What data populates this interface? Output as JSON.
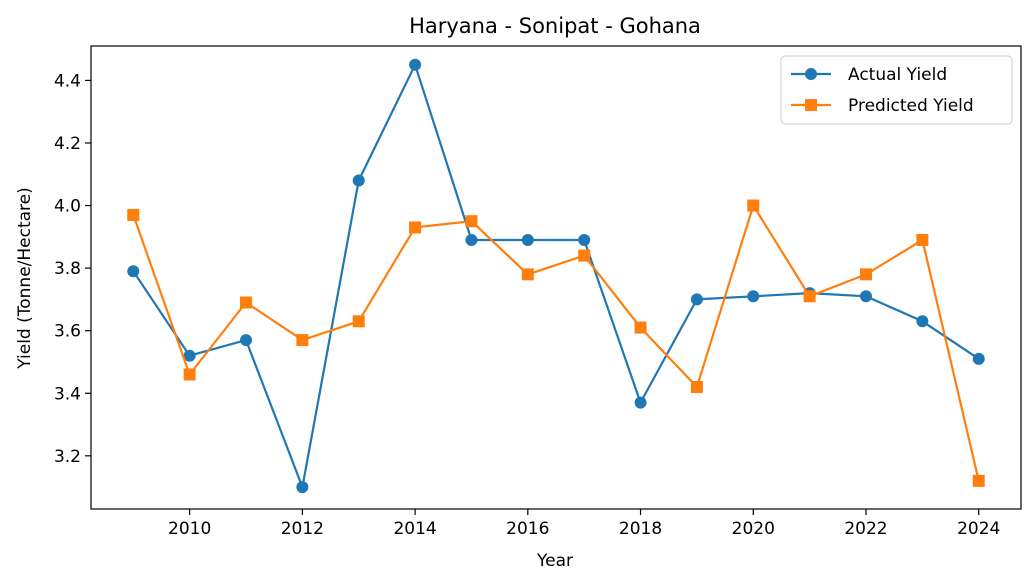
{
  "chart_data": {
    "type": "line",
    "title": "Haryana - Sonipat - Gohana",
    "xlabel": "Year",
    "ylabel": "Yield (Tonne/Hectare)",
    "x": [
      2009,
      2010,
      2011,
      2012,
      2013,
      2014,
      2015,
      2016,
      2017,
      2018,
      2019,
      2020,
      2021,
      2022,
      2023,
      2024
    ],
    "xlim": [
      2008.25,
      2024.75
    ],
    "ylim": [
      3.03,
      4.51
    ],
    "xticks": [
      "2010",
      "2012",
      "2014",
      "2016",
      "2018",
      "2020",
      "2022",
      "2024"
    ],
    "yticks": [
      "3.2",
      "3.4",
      "3.6",
      "3.8",
      "4.0",
      "4.2",
      "4.4"
    ],
    "grid": false,
    "legend_position": "top-right",
    "series": [
      {
        "name": "Actual Yield",
        "color": "#1f77b4",
        "marker": "circle",
        "values": [
          3.79,
          3.52,
          3.57,
          3.1,
          4.08,
          4.45,
          3.89,
          3.89,
          3.89,
          3.37,
          3.7,
          3.71,
          3.72,
          3.71,
          3.63,
          3.51
        ]
      },
      {
        "name": "Predicted Yield",
        "color": "#ff7f0e",
        "marker": "square",
        "values": [
          3.97,
          3.46,
          3.69,
          3.57,
          3.63,
          3.93,
          3.95,
          3.78,
          3.84,
          3.61,
          3.42,
          4.0,
          3.71,
          3.78,
          3.89,
          3.12
        ]
      }
    ]
  }
}
